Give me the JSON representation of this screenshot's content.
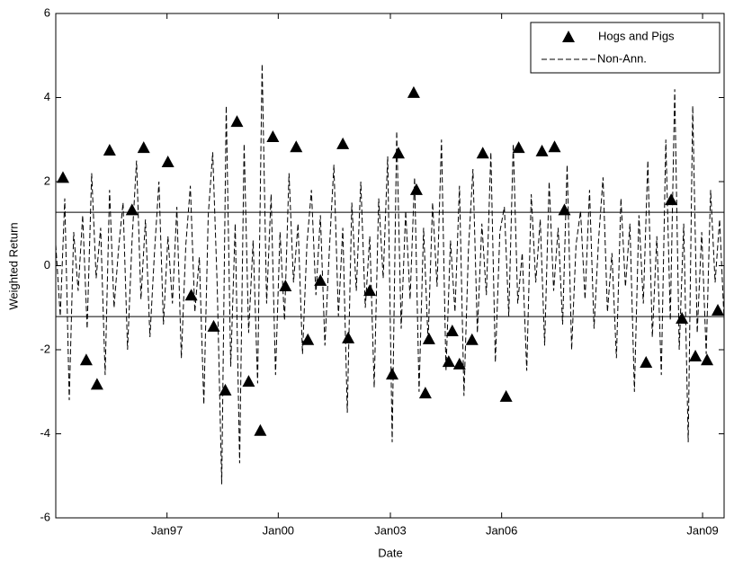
{
  "chart_data": {
    "type": "line",
    "xlabel": "Date",
    "ylabel": "Weighted Return",
    "xlim": [
      0,
      745
    ],
    "ylim": [
      -6,
      6
    ],
    "xticks": [
      {
        "value": 124,
        "label": "Jan97"
      },
      {
        "value": 248,
        "label": "Jan00"
      },
      {
        "value": 373,
        "label": "Jan03"
      },
      {
        "value": 497,
        "label": "Jan06"
      },
      {
        "value": 721,
        "label": "Jan09"
      }
    ],
    "yticks": [
      -6,
      -4,
      -2,
      0,
      2,
      4,
      6
    ],
    "hlines": [
      1.27,
      -1.21
    ],
    "legend": "upper right",
    "series": [
      {
        "name": "Hogs and Pigs",
        "kind": "marker",
        "color": "#000000",
        "x": [
          8,
          34,
          46,
          60,
          85,
          98,
          125,
          151,
          176,
          189,
          202,
          215,
          228,
          242,
          256,
          268,
          281,
          295,
          320,
          326,
          350,
          375,
          382,
          399,
          402,
          412,
          416,
          438,
          442,
          450,
          464,
          476,
          502,
          516,
          542,
          556,
          567,
          658,
          686,
          698,
          713,
          726,
          738
        ],
        "values": [
          2.1,
          -2.24,
          -2.82,
          2.75,
          1.33,
          2.81,
          2.47,
          -0.7,
          -1.44,
          -2.96,
          3.43,
          -2.75,
          -3.92,
          3.07,
          -0.48,
          2.83,
          -1.76,
          -0.35,
          2.9,
          -1.72,
          -0.59,
          -2.58,
          2.68,
          4.12,
          1.81,
          -3.03,
          -1.74,
          -2.28,
          -1.55,
          -2.34,
          -1.76,
          2.68,
          -3.11,
          2.81,
          2.73,
          2.83,
          1.33,
          -2.3,
          1.57,
          -1.25,
          -2.15,
          -2.24,
          -1.06
        ]
      },
      {
        "name": "Non-Ann.",
        "kind": "dashed",
        "color": "#000000",
        "x": [
          0,
          5,
          10,
          15,
          20,
          25,
          30,
          35,
          40,
          45,
          50,
          55,
          60,
          65,
          70,
          75,
          80,
          85,
          90,
          95,
          100,
          105,
          110,
          115,
          120,
          125,
          130,
          135,
          140,
          145,
          150,
          155,
          160,
          165,
          170,
          175,
          180,
          185,
          190,
          195,
          200,
          205,
          210,
          215,
          220,
          225,
          230,
          235,
          240,
          245,
          250,
          255,
          260,
          265,
          270,
          275,
          280,
          285,
          290,
          295,
          300,
          305,
          310,
          315,
          320,
          325,
          330,
          335,
          340,
          345,
          350,
          355,
          360,
          365,
          370,
          375,
          380,
          385,
          390,
          395,
          400,
          405,
          410,
          415,
          420,
          425,
          430,
          435,
          440,
          445,
          450,
          455,
          460,
          465,
          470,
          475,
          480,
          485,
          490,
          495,
          500,
          505,
          510,
          515,
          520,
          525,
          530,
          535,
          540,
          545,
          550,
          555,
          560,
          565,
          570,
          575,
          580,
          585,
          590,
          595,
          600,
          605,
          610,
          615,
          620,
          625,
          630,
          635,
          640,
          645,
          650,
          655,
          660,
          665,
          670,
          675,
          680,
          685,
          690,
          695,
          700,
          705,
          710,
          715,
          720,
          725,
          730,
          735,
          740,
          745
        ],
        "values": [
          0.5,
          -1.2,
          1.6,
          -3.2,
          0.8,
          -0.6,
          1.2,
          -1.5,
          2.2,
          -0.3,
          0.9,
          -2.6,
          1.8,
          -1.0,
          0.4,
          1.5,
          -2.0,
          0.6,
          2.5,
          -0.8,
          1.1,
          -1.7,
          0.3,
          2.0,
          -1.4,
          0.7,
          -0.9,
          1.4,
          -2.2,
          0.5,
          1.9,
          -1.1,
          0.2,
          -3.3,
          1.2,
          2.7,
          -0.5,
          -5.2,
          3.8,
          -2.4,
          1.0,
          -4.7,
          2.9,
          -1.6,
          0.6,
          -2.8,
          4.8,
          -0.9,
          1.7,
          -2.6,
          0.8,
          -1.3,
          2.2,
          -0.4,
          1.0,
          -2.1,
          0.5,
          1.8,
          -0.7,
          1.2,
          -1.9,
          0.4,
          2.4,
          -1.2,
          0.9,
          -3.5,
          1.5,
          -0.6,
          2.0,
          -1.0,
          0.7,
          -2.9,
          1.6,
          -0.3,
          2.6,
          -4.2,
          3.2,
          -1.5,
          1.3,
          -0.8,
          2.1,
          -3.0,
          0.9,
          -1.8,
          1.5,
          -0.5,
          3.0,
          -2.5,
          0.6,
          -1.1,
          1.9,
          -3.1,
          0.4,
          2.3,
          -1.6,
          1.0,
          -0.7,
          2.7,
          -2.3,
          0.8,
          1.4,
          -1.2,
          2.9,
          -0.9,
          0.3,
          -2.5,
          1.7,
          -0.4,
          1.1,
          -1.9,
          2.0,
          -0.6,
          0.9,
          -1.4,
          2.4,
          -2.0,
          0.5,
          1.3,
          -0.8,
          1.8,
          -1.5,
          0.6,
          2.1,
          -1.1,
          0.3,
          -2.2,
          1.6,
          -0.5,
          1.0,
          -3.0,
          1.2,
          -0.9,
          2.5,
          -1.7,
          0.7,
          -2.6,
          3.0,
          -1.3,
          4.2,
          -2.0,
          1.0,
          -4.2,
          3.8,
          -1.6,
          0.8,
          -2.1,
          1.8,
          -0.4,
          1.1,
          -1.3
        ]
      }
    ]
  }
}
